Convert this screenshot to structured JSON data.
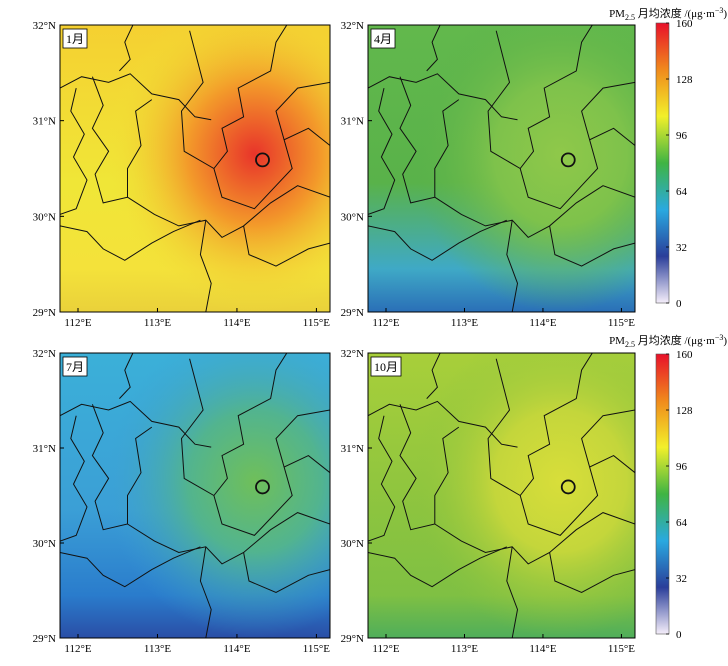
{
  "colorbar": {
    "title_main": "PM",
    "title_sub": "2.5",
    "title_rest": " 月均浓度 /(μg·m",
    "title_sup": "−3",
    "title_close": ")",
    "ticks": [
      "160",
      "128",
      "96",
      "64",
      "32",
      "0"
    ],
    "stops": [
      "#e8112a",
      "#f08a1c",
      "#f2f02a",
      "#3fb443",
      "#2aa9e0",
      "#2a3e9a",
      "#f5eefa"
    ]
  },
  "axes": {
    "x_ticks": [
      "112°E",
      "113°E",
      "114°E",
      "115°E"
    ],
    "y_ticks": [
      "32°N",
      "31°N",
      "30°N",
      "29°N"
    ]
  },
  "panels": [
    {
      "id": "jan",
      "label": "1月",
      "base": "#f0e637",
      "mid": "#f5d031",
      "hot": "#e8342a",
      "warm": "#f39a2a",
      "south": "#f4e23a",
      "southDeep": "#ead13a"
    },
    {
      "id": "apr",
      "label": "4月",
      "base": "#59b24a",
      "mid": "#62b84c",
      "hot": "#8fc84a",
      "warm": "#7ec24b",
      "south": "#3fa9c6",
      "southDeep": "#2a6fb7"
    },
    {
      "id": "jul",
      "label": "7月",
      "base": "#3b9fd6",
      "mid": "#3bb0d8",
      "hot": "#6fbf5a",
      "warm": "#52b48f",
      "south": "#2a7ccc",
      "southDeep": "#2a4ea6"
    },
    {
      "id": "oct",
      "label": "10月",
      "base": "#8cc43f",
      "mid": "#a8cf3a",
      "hot": "#d8de3a",
      "warm": "#c4d63b",
      "south": "#7fc043",
      "southDeep": "#4fae5a"
    }
  ]
}
